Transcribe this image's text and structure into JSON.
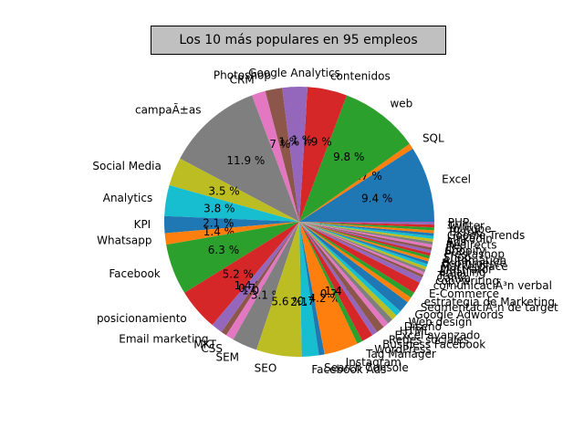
{
  "chart_data": {
    "type": "pie",
    "title": "Los 10 más populares en 95 empleos",
    "slices": [
      {
        "label": "Excel",
        "value": 9.4,
        "pct": "9.4 %",
        "color": "#1f77b4"
      },
      {
        "label": "SQL",
        "value": 0.7,
        "pct": "0.7 %",
        "color": "#ff7f0e"
      },
      {
        "label": "web",
        "value": 9.8,
        "pct": "9.8 %",
        "color": "#2ca02c"
      },
      {
        "label": "contenidos",
        "value": 4.9,
        "pct": "4.9 %",
        "color": "#d62728"
      },
      {
        "label": "Google Analytics",
        "value": 3.1,
        "pct": "3.1 %",
        "color": "#9467bd"
      },
      {
        "label": "Photoshop",
        "value": 2.1,
        "pct": "2.1 %",
        "color": "#8c564b"
      },
      {
        "label": "CRM",
        "value": 1.7,
        "pct": "1.7 %",
        "color": "#e377c2"
      },
      {
        "label": "campaÃ±as",
        "value": 11.9,
        "pct": "11.9 %",
        "color": "#7f7f7f"
      },
      {
        "label": "Social Media",
        "value": 3.5,
        "pct": "3.5 %",
        "color": "#bcbd22"
      },
      {
        "label": "Analytics",
        "value": 3.8,
        "pct": "3.8 %",
        "color": "#17becf"
      },
      {
        "label": "KPI",
        "value": 2.1,
        "pct": "2.1 %",
        "color": "#1f77b4"
      },
      {
        "label": "Whatsapp",
        "value": 1.4,
        "pct": "1.4 %",
        "color": "#ff7f0e"
      },
      {
        "label": "Facebook",
        "value": 6.3,
        "pct": "6.3 %",
        "color": "#2ca02c"
      },
      {
        "label": "posicionamiento",
        "value": 5.2,
        "pct": "5.2 %",
        "color": "#d62728"
      },
      {
        "label": "Email marketing",
        "value": 1.4,
        "pct": "1.4 %",
        "color": "#9467bd"
      },
      {
        "label": "MKT",
        "value": 0.7,
        "pct": "0.7 %",
        "color": "#8c564b"
      },
      {
        "label": "CSS",
        "value": 1.0,
        "pct": "1.0 %",
        "color": "#e377c2"
      },
      {
        "label": "SEM",
        "value": 3.1,
        "pct": "3.1 %",
        "color": "#7f7f7f"
      },
      {
        "label": "SEO",
        "value": 5.6,
        "pct": "5.6 %",
        "color": "#bcbd22"
      },
      {
        "label": "Facebook Ads",
        "value": 2.1,
        "pct": "2.1 %",
        "color": "#17becf"
      },
      {
        "label": "Search Console",
        "value": 0.7,
        "pct": "0.7 %",
        "color": "#1f77b4"
      },
      {
        "label": "Instagram",
        "value": 4.2,
        "pct": "4.2 %",
        "color": "#ff7f0e"
      },
      {
        "label": "Tag Manager",
        "value": 0.7,
        "pct": "0.7 %",
        "color": "#2ca02c"
      },
      {
        "label": "WordPress",
        "value": 1.4,
        "pct": "1.4 %",
        "color": "#d62728"
      },
      {
        "label": "Business Facebook",
        "value": 0.7,
        "pct": "",
        "color": "#9467bd"
      },
      {
        "label": "Redes sociales",
        "value": 1.0,
        "pct": "",
        "color": "#8c564b"
      },
      {
        "label": "Excel avanzado",
        "value": 0.7,
        "pct": "",
        "color": "#e377c2"
      },
      {
        "label": "HTML",
        "value": 0.7,
        "pct": "",
        "color": "#7f7f7f"
      },
      {
        "label": "Diseño",
        "value": 0.7,
        "pct": "",
        "color": "#bcbd22"
      },
      {
        "label": "Web design",
        "value": 0.7,
        "pct": "",
        "color": "#17becf"
      },
      {
        "label": "Google Adwords",
        "value": 1.4,
        "pct": "",
        "color": "#1f77b4"
      },
      {
        "label": "SegmentaciÃ³n de target",
        "value": 0.7,
        "pct": "",
        "color": "#ff7f0e"
      },
      {
        "label": "estrategia de Marketing",
        "value": 0.7,
        "pct": "",
        "color": "#2ca02c"
      },
      {
        "label": "E-Commerce",
        "value": 1.4,
        "pct": "",
        "color": "#d62728"
      },
      {
        "label": "comunicaciÃ³n verbal",
        "value": 0.7,
        "pct": "",
        "color": "#9467bd"
      },
      {
        "label": "copywriting",
        "value": 0.35,
        "pct": "",
        "color": "#8c564b"
      },
      {
        "label": "Canva",
        "value": 0.35,
        "pct": "",
        "color": "#e377c2"
      },
      {
        "label": "Trello",
        "value": 0.35,
        "pct": "",
        "color": "#7f7f7f"
      },
      {
        "label": "emailing",
        "value": 0.35,
        "pct": "",
        "color": "#bcbd22"
      },
      {
        "label": "Illustrator",
        "value": 0.35,
        "pct": "",
        "color": "#17becf"
      },
      {
        "label": "Marketplace",
        "value": 0.35,
        "pct": "",
        "color": "#1f77b4"
      },
      {
        "label": "Ecommerce",
        "value": 0.35,
        "pct": "",
        "color": "#ff7f0e"
      },
      {
        "label": "Automation",
        "value": 0.35,
        "pct": "",
        "color": "#2ca02c"
      },
      {
        "label": "Shop",
        "value": 0.35,
        "pct": "",
        "color": "#d62728"
      },
      {
        "label": "Prestashop",
        "value": 0.35,
        "pct": "",
        "color": "#9467bd"
      },
      {
        "label": "Shopify",
        "value": 0.35,
        "pct": "",
        "color": "#8c564b"
      },
      {
        "label": "Jira",
        "value": 0.35,
        "pct": "",
        "color": "#e377c2"
      },
      {
        "label": "Redirects",
        "value": 0.35,
        "pct": "",
        "color": "#7f7f7f"
      },
      {
        "label": "Ads",
        "value": 0.35,
        "pct": "",
        "color": "#bcbd22"
      },
      {
        "label": "Linkedin",
        "value": 0.35,
        "pct": "",
        "color": "#17becf"
      },
      {
        "label": "Google Trends",
        "value": 0.35,
        "pct": "",
        "color": "#1f77b4"
      },
      {
        "label": "Tiktok",
        "value": 0.35,
        "pct": "",
        "color": "#ff7f0e"
      },
      {
        "label": "Youtube",
        "value": 0.35,
        "pct": "",
        "color": "#2ca02c"
      },
      {
        "label": "Twitter",
        "value": 0.35,
        "pct": "",
        "color": "#d62728"
      },
      {
        "label": "PHP",
        "value": 0.35,
        "pct": "",
        "color": "#9467bd"
      }
    ]
  }
}
